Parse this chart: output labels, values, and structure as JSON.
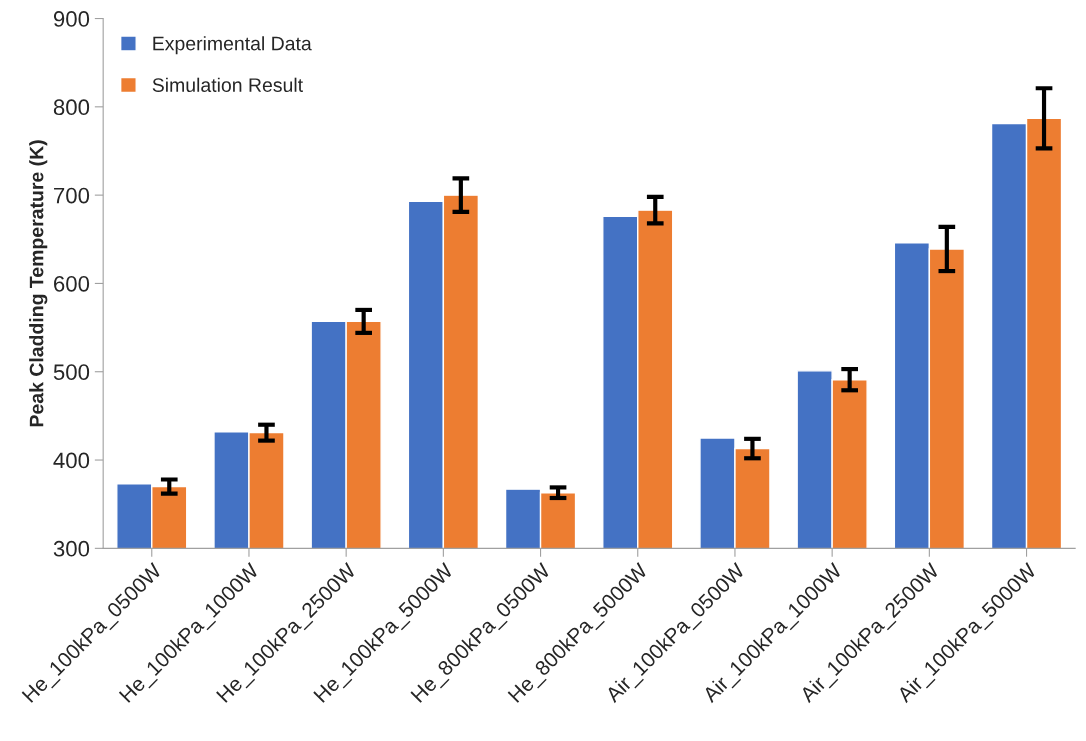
{
  "chart_data": {
    "type": "bar",
    "ylabel": "Peak Cladding Temperature (K)",
    "categories": [
      "He_100kPa_0500W",
      "He_100kPa_1000W",
      "He_100kPa_2500W",
      "He_100kPa_5000W",
      "He_800kPa_0500W",
      "He_800kPa_5000W",
      "Air_100kPa_0500W",
      "Air_100kPa_1000W",
      "Air_100kPa_2500W",
      "Air_100kPa_5000W"
    ],
    "series": [
      {
        "name": "Experimental Data",
        "color": "#4472c4",
        "values": [
          373,
          432,
          557,
          693,
          367,
          676,
          425,
          501,
          646,
          781
        ]
      },
      {
        "name": "Simulation Result",
        "color": "#ed7d31",
        "values": [
          370,
          431,
          557,
          700,
          363,
          683,
          413,
          491,
          639,
          787
        ],
        "errors": [
          8,
          9,
          13,
          19,
          6,
          15,
          11,
          12,
          25,
          34
        ]
      }
    ],
    "ylim": [
      300,
      900
    ],
    "yticks": [
      300,
      400,
      500,
      600,
      700,
      800,
      900
    ],
    "grid": false,
    "legend": "top left"
  }
}
